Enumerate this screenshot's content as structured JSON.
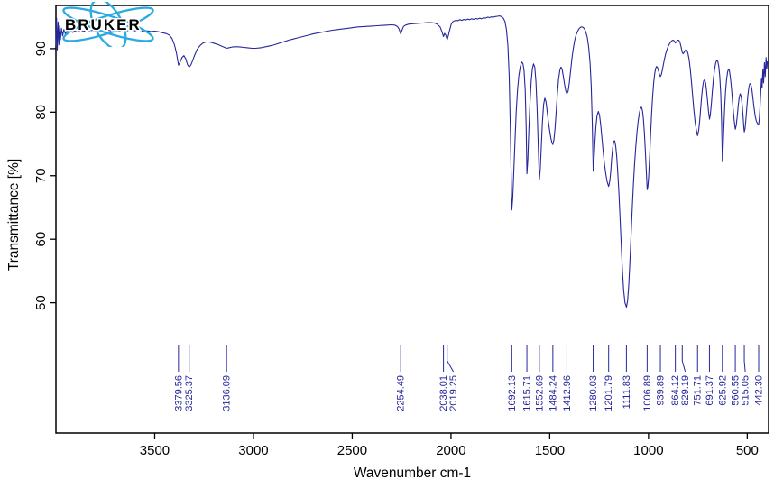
{
  "branding": {
    "logo_text": "BRUKER",
    "logo_color": "#29abe2"
  },
  "chart_data": {
    "type": "line",
    "title": "",
    "xlabel": "Wavenumber cm-1",
    "ylabel": "Transmittance [%]",
    "x_ticks": [
      3500,
      3000,
      2500,
      2000,
      1500,
      1000,
      500
    ],
    "y_ticks": [
      90,
      80,
      70,
      60,
      50
    ],
    "x_range": [
      4000,
      392
    ],
    "y_range": [
      29.5,
      96.8
    ],
    "x_axis_reversed": true,
    "grid": false,
    "legend": "none",
    "line_color": "#26269c",
    "peak_labels": [
      "3379.56",
      "3325.37",
      "3136.09",
      "2254.49",
      "2038.01",
      "2019.25",
      "1692.13",
      "1615.71",
      "1552.69",
      "1484.24",
      "1412.96",
      "1280.03",
      "1201.79",
      "1111.83",
      "1006.89",
      "939.89",
      "864.12",
      "829.19",
      "751.71",
      "691.37",
      "625.92",
      "560.55",
      "515.05",
      "442.30"
    ],
    "spectrum": [
      [
        4000,
        90.5
      ],
      [
        3997,
        94.8
      ],
      [
        3993,
        89.8
      ],
      [
        3989,
        94.2
      ],
      [
        3985,
        90.6
      ],
      [
        3981,
        93.6
      ],
      [
        3977,
        91.4
      ],
      [
        3972,
        93.2
      ],
      [
        3966,
        92.0
      ],
      [
        3960,
        93.0
      ],
      [
        3952,
        92.3
      ],
      [
        3944,
        92.9
      ],
      [
        3936,
        92.5
      ],
      [
        3925,
        92.8
      ],
      [
        3915,
        92.55
      ],
      [
        3905,
        92.75
      ],
      [
        3890,
        92.6
      ],
      [
        3875,
        92.85
      ],
      [
        3860,
        92.7
      ],
      [
        3845,
        92.9
      ],
      [
        3830,
        92.75
      ],
      [
        3815,
        92.9
      ],
      [
        3800,
        92.8
      ],
      [
        3780,
        92.9
      ],
      [
        3760,
        92.75
      ],
      [
        3740,
        92.9
      ],
      [
        3720,
        92.8
      ],
      [
        3700,
        92.85
      ],
      [
        3680,
        92.75
      ],
      [
        3660,
        92.85
      ],
      [
        3640,
        92.8
      ],
      [
        3620,
        92.85
      ],
      [
        3600,
        92.8
      ],
      [
        3580,
        92.85
      ],
      [
        3560,
        92.75
      ],
      [
        3540,
        92.8
      ],
      [
        3520,
        92.7
      ],
      [
        3500,
        92.75
      ],
      [
        3480,
        92.65
      ],
      [
        3460,
        92.5
      ],
      [
        3440,
        92.35
      ],
      [
        3425,
        92.1
      ],
      [
        3412,
        91.6
      ],
      [
        3400,
        90.6
      ],
      [
        3390,
        89.3
      ],
      [
        3379.56,
        87.4
      ],
      [
        3371,
        87.9
      ],
      [
        3362,
        88.6
      ],
      [
        3352,
        88.9
      ],
      [
        3343,
        88.4
      ],
      [
        3334,
        87.5
      ],
      [
        3325.37,
        87.1
      ],
      [
        3317,
        87.4
      ],
      [
        3308,
        88.1
      ],
      [
        3297,
        89.0
      ],
      [
        3285,
        89.9
      ],
      [
        3270,
        90.5
      ],
      [
        3255,
        90.9
      ],
      [
        3240,
        91.05
      ],
      [
        3225,
        91.05
      ],
      [
        3210,
        90.95
      ],
      [
        3195,
        90.8
      ],
      [
        3180,
        90.65
      ],
      [
        3165,
        90.45
      ],
      [
        3150,
        90.25
      ],
      [
        3136.09,
        90.05
      ],
      [
        3122,
        90.15
      ],
      [
        3108,
        90.25
      ],
      [
        3094,
        90.3
      ],
      [
        3080,
        90.3
      ],
      [
        3065,
        90.25
      ],
      [
        3050,
        90.2
      ],
      [
        3035,
        90.15
      ],
      [
        3020,
        90.1
      ],
      [
        3005,
        90.05
      ],
      [
        2990,
        90.05
      ],
      [
        2975,
        90.1
      ],
      [
        2960,
        90.15
      ],
      [
        2945,
        90.25
      ],
      [
        2930,
        90.35
      ],
      [
        2915,
        90.45
      ],
      [
        2900,
        90.55
      ],
      [
        2880,
        90.75
      ],
      [
        2860,
        90.95
      ],
      [
        2840,
        91.15
      ],
      [
        2820,
        91.35
      ],
      [
        2800,
        91.5
      ],
      [
        2775,
        91.7
      ],
      [
        2750,
        91.9
      ],
      [
        2725,
        92.1
      ],
      [
        2700,
        92.3
      ],
      [
        2675,
        92.45
      ],
      [
        2650,
        92.6
      ],
      [
        2625,
        92.75
      ],
      [
        2600,
        92.9
      ],
      [
        2575,
        93.0
      ],
      [
        2550,
        93.1
      ],
      [
        2525,
        93.2
      ],
      [
        2500,
        93.3
      ],
      [
        2475,
        93.4
      ],
      [
        2450,
        93.45
      ],
      [
        2425,
        93.5
      ],
      [
        2400,
        93.55
      ],
      [
        2375,
        93.6
      ],
      [
        2350,
        93.65
      ],
      [
        2325,
        93.7
      ],
      [
        2300,
        93.75
      ],
      [
        2285,
        93.7
      ],
      [
        2272,
        93.5
      ],
      [
        2263,
        93.1
      ],
      [
        2254.49,
        92.3
      ],
      [
        2247,
        93.0
      ],
      [
        2240,
        93.5
      ],
      [
        2230,
        93.7
      ],
      [
        2215,
        93.85
      ],
      [
        2200,
        93.9
      ],
      [
        2180,
        93.95
      ],
      [
        2160,
        94.0
      ],
      [
        2140,
        94.05
      ],
      [
        2120,
        94.1
      ],
      [
        2100,
        94.1
      ],
      [
        2085,
        94.05
      ],
      [
        2070,
        93.85
      ],
      [
        2055,
        93.4
      ],
      [
        2045,
        92.6
      ],
      [
        2038.01,
        91.9
      ],
      [
        2032,
        92.4
      ],
      [
        2026,
        92.1
      ],
      [
        2019.25,
        91.4
      ],
      [
        2013,
        92.1
      ],
      [
        2006,
        93.0
      ],
      [
        1999,
        93.8
      ],
      [
        1992,
        94.2
      ],
      [
        1985,
        94.35
      ],
      [
        1975,
        94.45
      ],
      [
        1965,
        94.4
      ],
      [
        1955,
        94.55
      ],
      [
        1945,
        94.45
      ],
      [
        1935,
        94.6
      ],
      [
        1925,
        94.5
      ],
      [
        1915,
        94.65
      ],
      [
        1905,
        94.55
      ],
      [
        1895,
        94.7
      ],
      [
        1885,
        94.6
      ],
      [
        1875,
        94.75
      ],
      [
        1865,
        94.65
      ],
      [
        1855,
        94.8
      ],
      [
        1845,
        94.7
      ],
      [
        1835,
        94.85
      ],
      [
        1825,
        94.8
      ],
      [
        1815,
        94.95
      ],
      [
        1805,
        94.9
      ],
      [
        1795,
        95.0
      ],
      [
        1785,
        94.95
      ],
      [
        1775,
        95.05
      ],
      [
        1765,
        95.1
      ],
      [
        1755,
        95.15
      ],
      [
        1745,
        95.05
      ],
      [
        1735,
        94.8
      ],
      [
        1727,
        94.3
      ],
      [
        1719,
        93.0
      ],
      [
        1712,
        90.5
      ],
      [
        1705,
        85.5
      ],
      [
        1699,
        77.0
      ],
      [
        1692.13,
        64.6
      ],
      [
        1687,
        66.5
      ],
      [
        1682,
        70.5
      ],
      [
        1676,
        75.5
      ],
      [
        1670,
        80.0
      ],
      [
        1663,
        83.5
      ],
      [
        1656,
        85.8
      ],
      [
        1649,
        87.2
      ],
      [
        1642,
        87.9
      ],
      [
        1636,
        87.7
      ],
      [
        1630,
        86.6
      ],
      [
        1624,
        83.5
      ],
      [
        1619,
        77.5
      ],
      [
        1615.71,
        70.3
      ],
      [
        1611,
        72.5
      ],
      [
        1606,
        77.0
      ],
      [
        1600,
        81.5
      ],
      [
        1594,
        84.8
      ],
      [
        1588,
        86.8
      ],
      [
        1582,
        87.6
      ],
      [
        1576,
        87.1
      ],
      [
        1570,
        84.8
      ],
      [
        1564,
        80.5
      ],
      [
        1558,
        74.5
      ],
      [
        1552.69,
        69.4
      ],
      [
        1548,
        71.0
      ],
      [
        1543,
        74.5
      ],
      [
        1537,
        78.5
      ],
      [
        1531,
        81.2
      ],
      [
        1525,
        82.2
      ],
      [
        1519,
        81.7
      ],
      [
        1513,
        80.2
      ],
      [
        1507,
        78.5
      ],
      [
        1500,
        77.0
      ],
      [
        1494,
        75.9
      ],
      [
        1489,
        75.2
      ],
      [
        1484.24,
        74.9
      ],
      [
        1479,
        75.6
      ],
      [
        1473,
        77.5
      ],
      [
        1467,
        80.2
      ],
      [
        1461,
        83.0
      ],
      [
        1455,
        85.2
      ],
      [
        1449,
        86.6
      ],
      [
        1443,
        87.1
      ],
      [
        1437,
        86.7
      ],
      [
        1431,
        85.6
      ],
      [
        1425,
        84.4
      ],
      [
        1419,
        83.4
      ],
      [
        1413,
        82.9
      ],
      [
        1407,
        83.3
      ],
      [
        1401,
        84.6
      ],
      [
        1394,
        86.6
      ],
      [
        1387,
        88.6
      ],
      [
        1380,
        90.2
      ],
      [
        1373,
        91.4
      ],
      [
        1366,
        92.2
      ],
      [
        1358,
        92.8
      ],
      [
        1350,
        93.2
      ],
      [
        1342,
        93.4
      ],
      [
        1334,
        93.4
      ],
      [
        1326,
        93.2
      ],
      [
        1318,
        92.7
      ],
      [
        1310,
        91.8
      ],
      [
        1303,
        90.3
      ],
      [
        1296,
        87.8
      ],
      [
        1290,
        84.0
      ],
      [
        1285,
        78.5
      ],
      [
        1280.03,
        70.7
      ],
      [
        1276,
        72.3
      ],
      [
        1271,
        75.3
      ],
      [
        1266,
        77.8
      ],
      [
        1260,
        79.5
      ],
      [
        1254,
        80.1
      ],
      [
        1248,
        79.5
      ],
      [
        1242,
        78.0
      ],
      [
        1236,
        76.0
      ],
      [
        1230,
        74.0
      ],
      [
        1223,
        71.9
      ],
      [
        1216,
        70.2
      ],
      [
        1209,
        69.0
      ],
      [
        1201.79,
        68.3
      ],
      [
        1196,
        69.2
      ],
      [
        1191,
        70.8
      ],
      [
        1186,
        72.8
      ],
      [
        1181,
        74.4
      ],
      [
        1176,
        75.4
      ],
      [
        1171,
        75.5
      ],
      [
        1166,
        74.7
      ],
      [
        1161,
        73.1
      ],
      [
        1156,
        70.8
      ],
      [
        1150,
        67.5
      ],
      [
        1144,
        63.5
      ],
      [
        1138,
        59.0
      ],
      [
        1132,
        55.0
      ],
      [
        1126,
        52.0
      ],
      [
        1119,
        50.0
      ],
      [
        1111.83,
        49.3
      ],
      [
        1106,
        50.3
      ],
      [
        1100,
        52.8
      ],
      [
        1094,
        56.5
      ],
      [
        1088,
        60.8
      ],
      [
        1082,
        65.0
      ],
      [
        1076,
        68.8
      ],
      [
        1070,
        72.0
      ],
      [
        1064,
        74.8
      ],
      [
        1058,
        77.0
      ],
      [
        1052,
        78.7
      ],
      [
        1046,
        79.9
      ],
      [
        1041,
        80.6
      ],
      [
        1036,
        80.8
      ],
      [
        1031,
        80.3
      ],
      [
        1026,
        79.0
      ],
      [
        1021,
        76.8
      ],
      [
        1016,
        73.8
      ],
      [
        1011,
        70.5
      ],
      [
        1006.89,
        67.8
      ],
      [
        1003,
        68.3
      ],
      [
        999,
        70.0
      ],
      [
        994,
        73.2
      ],
      [
        989,
        76.8
      ],
      [
        984,
        80.0
      ],
      [
        979,
        82.6
      ],
      [
        974,
        84.6
      ],
      [
        969,
        86.0
      ],
      [
        964,
        86.9
      ],
      [
        959,
        87.2
      ],
      [
        954,
        87.0
      ],
      [
        949,
        86.5
      ],
      [
        944,
        85.9
      ],
      [
        939.89,
        85.6
      ],
      [
        935,
        85.9
      ],
      [
        930,
        86.6
      ],
      [
        924,
        87.6
      ],
      [
        918,
        88.5
      ],
      [
        912,
        89.3
      ],
      [
        906,
        89.9
      ],
      [
        900,
        90.4
      ],
      [
        893,
        90.8
      ],
      [
        886,
        91.1
      ],
      [
        879,
        91.3
      ],
      [
        873,
        91.3
      ],
      [
        868,
        91.1
      ],
      [
        864.12,
        90.9
      ],
      [
        860,
        91.0
      ],
      [
        856,
        91.2
      ],
      [
        851,
        91.35
      ],
      [
        846,
        91.3
      ],
      [
        841,
        91.0
      ],
      [
        836,
        90.4
      ],
      [
        832,
        89.8
      ],
      [
        829.19,
        89.4
      ],
      [
        825,
        89.2
      ],
      [
        820,
        89.4
      ],
      [
        815,
        89.7
      ],
      [
        810,
        89.8
      ],
      [
        805,
        89.7
      ],
      [
        800,
        89.2
      ],
      [
        794,
        88.2
      ],
      [
        788,
        86.6
      ],
      [
        782,
        84.6
      ],
      [
        776,
        82.4
      ],
      [
        770,
        80.3
      ],
      [
        764,
        78.5
      ],
      [
        758,
        77.2
      ],
      [
        751.71,
        76.3
      ],
      [
        746,
        77.1
      ],
      [
        741,
        78.6
      ],
      [
        736,
        80.6
      ],
      [
        731,
        82.5
      ],
      [
        726,
        84.0
      ],
      [
        721,
        84.9
      ],
      [
        716,
        85.1
      ],
      [
        711,
        84.6
      ],
      [
        706,
        83.4
      ],
      [
        701,
        81.8
      ],
      [
        696,
        80.1
      ],
      [
        691.37,
        78.9
      ],
      [
        687,
        79.6
      ],
      [
        682,
        81.2
      ],
      [
        677,
        83.2
      ],
      [
        672,
        85.0
      ],
      [
        666,
        86.6
      ],
      [
        660,
        87.7
      ],
      [
        654,
        88.2
      ],
      [
        649,
        88.0
      ],
      [
        644,
        87.2
      ],
      [
        639,
        85.6
      ],
      [
        634,
        82.8
      ],
      [
        630,
        78.5
      ],
      [
        625.92,
        72.2
      ],
      [
        622,
        74.5
      ],
      [
        618,
        78.0
      ],
      [
        614,
        81.0
      ],
      [
        610,
        83.3
      ],
      [
        605,
        85.1
      ],
      [
        600,
        86.3
      ],
      [
        595,
        86.8
      ],
      [
        590,
        86.5
      ],
      [
        585,
        85.4
      ],
      [
        579,
        83.4
      ],
      [
        573,
        81.0
      ],
      [
        567,
        78.9
      ],
      [
        562,
        77.6
      ],
      [
        560.55,
        77.3
      ],
      [
        556,
        77.9
      ],
      [
        551,
        79.3
      ],
      [
        546,
        81.0
      ],
      [
        541,
        82.3
      ],
      [
        536,
        82.9
      ],
      [
        531,
        82.5
      ],
      [
        526,
        81.2
      ],
      [
        521,
        79.2
      ],
      [
        517,
        77.5
      ],
      [
        515.05,
        76.9
      ],
      [
        511,
        77.4
      ],
      [
        507,
        78.8
      ],
      [
        502,
        80.8
      ],
      [
        497,
        82.6
      ],
      [
        492,
        83.9
      ],
      [
        487,
        84.5
      ],
      [
        482,
        84.4
      ],
      [
        477,
        83.7
      ],
      [
        472,
        82.4
      ],
      [
        466,
        80.8
      ],
      [
        460,
        79.4
      ],
      [
        454,
        78.6
      ],
      [
        448,
        78.2
      ],
      [
        442.3,
        78.1
      ],
      [
        439,
        78.9
      ],
      [
        436,
        80.5
      ],
      [
        432,
        82.8
      ],
      [
        428,
        85.2
      ],
      [
        425,
        83.8
      ],
      [
        421,
        86.8
      ],
      [
        417,
        84.6
      ],
      [
        413,
        87.8
      ],
      [
        409,
        85.6
      ],
      [
        405,
        88.6
      ],
      [
        401,
        86.8
      ],
      [
        398,
        88.0
      ]
    ]
  }
}
